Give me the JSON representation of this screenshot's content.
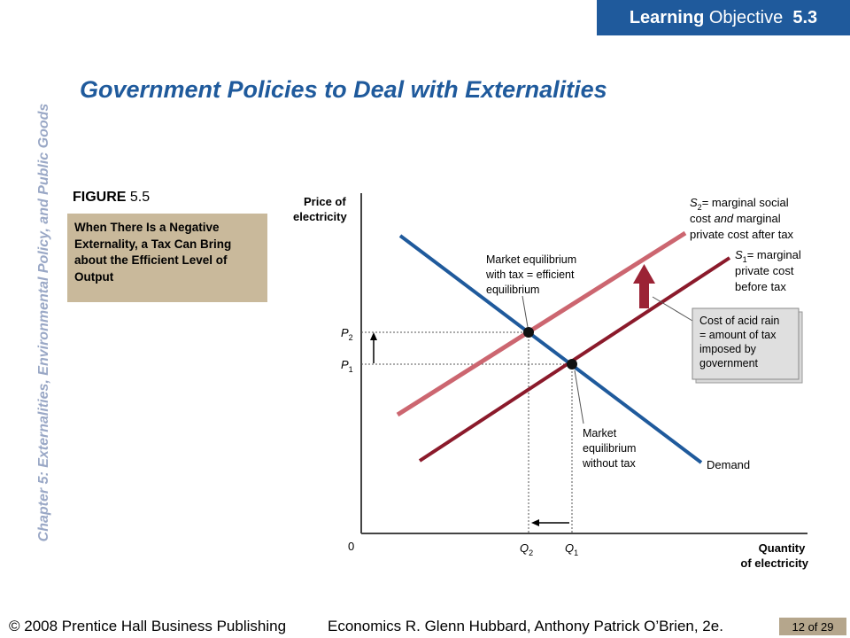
{
  "banner": {
    "strong": "Learning",
    "rest": "Objective",
    "number": "5.3"
  },
  "side_title": "Chapter 5: Externalities, Environmental Policy, and Public Goods",
  "slide_title": "Government Policies to Deal with Externalities",
  "figure": {
    "label": "FIGURE",
    "number": "5.5",
    "caption": "When There Is a Negative Externality, a Tax Can Bring about the Efficient Level of Output"
  },
  "diagram": {
    "y_axis_title": [
      "Price of",
      "electricity"
    ],
    "x_axis_title": [
      "Quantity",
      "of electricity"
    ],
    "origin": "0",
    "p2": {
      "main": "P",
      "sub": "2"
    },
    "p1": {
      "main": "P",
      "sub": "1"
    },
    "q2": {
      "main": "Q",
      "sub": "2"
    },
    "q1": {
      "main": "Q",
      "sub": "1"
    },
    "s2_label": {
      "sym": "S",
      "sub": "2",
      "line1": "= marginal social",
      "line2a": "cost ",
      "line2b": "and",
      "line2c": " marginal",
      "line3": "private cost after tax"
    },
    "s1_label": {
      "sym": "S",
      "sub": "1",
      "line1": "= marginal",
      "line2": "private cost",
      "line3": "before tax"
    },
    "demand_label": "Demand",
    "eq_tax_label": [
      "Market equilibrium",
      "with tax = efficient",
      "equilibrium"
    ],
    "eq_no_tax_label": [
      "Market",
      "equilibrium",
      "without tax"
    ],
    "acid_rain_box": [
      "Cost of acid rain",
      "= amount of tax",
      "imposed by",
      "government"
    ],
    "colors": {
      "demand": "#1f5a9c",
      "s1": "#8b1a2b",
      "s2": "#cc6670",
      "arrow": "#9b2335"
    }
  },
  "footer": {
    "copyright": "© 2008 Prentice Hall Business Publishing",
    "book": "Economics  R. Glenn Hubbard, Anthony Patrick O’Brien, 2e.",
    "page": "12 of 29"
  }
}
